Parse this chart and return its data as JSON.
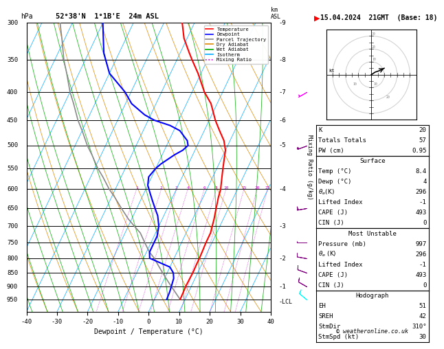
{
  "title_left": "52°38'N  1°1B'E  24m ASL",
  "title_right": "15.04.2024  21GMT  (Base: 18)",
  "xlabel": "Dewpoint / Temperature (°C)",
  "ylabel_left": "hPa",
  "ylabel_right_main": "Mixing Ratio (g/kg)",
  "pressure_levels": [
    300,
    350,
    400,
    450,
    500,
    550,
    600,
    650,
    700,
    750,
    800,
    850,
    900,
    950
  ],
  "pressure_major": [
    300,
    350,
    400,
    450,
    500,
    550,
    600,
    650,
    700,
    750,
    800,
    850,
    900,
    950
  ],
  "xlim": [
    -40,
    40
  ],
  "pmin": 300,
  "pmax": 1000,
  "skew": 45.0,
  "temp_color": "#ff0000",
  "dewp_color": "#0000ff",
  "parcel_color": "#888888",
  "dry_adiabat_color": "#dd8800",
  "wet_adiabat_color": "#00aa00",
  "isotherm_color": "#00aaff",
  "mixing_ratio_color": "#cc00cc",
  "background": "#ffffff",
  "temp_data": [
    [
      300,
      -34
    ],
    [
      320,
      -31
    ],
    [
      340,
      -27
    ],
    [
      350,
      -25
    ],
    [
      370,
      -21
    ],
    [
      400,
      -16
    ],
    [
      420,
      -12
    ],
    [
      450,
      -8
    ],
    [
      470,
      -5
    ],
    [
      490,
      -2
    ],
    [
      500,
      -1
    ],
    [
      510,
      0
    ],
    [
      520,
      0.5
    ],
    [
      530,
      1
    ],
    [
      550,
      2
    ],
    [
      570,
      3
    ],
    [
      590,
      4
    ],
    [
      600,
      4.5
    ],
    [
      620,
      5
    ],
    [
      650,
      6
    ],
    [
      680,
      7
    ],
    [
      700,
      7.5
    ],
    [
      720,
      8
    ],
    [
      750,
      8
    ],
    [
      780,
      8.2
    ],
    [
      800,
      8.3
    ],
    [
      820,
      8.3
    ],
    [
      850,
      8.4
    ],
    [
      870,
      8.3
    ],
    [
      900,
      8.2
    ],
    [
      920,
      8.3
    ],
    [
      950,
      8.4
    ]
  ],
  "dewp_data": [
    [
      300,
      -60
    ],
    [
      340,
      -55
    ],
    [
      370,
      -50
    ],
    [
      400,
      -42
    ],
    [
      420,
      -38
    ],
    [
      440,
      -32
    ],
    [
      450,
      -28
    ],
    [
      460,
      -22
    ],
    [
      470,
      -18
    ],
    [
      480,
      -16
    ],
    [
      490,
      -14
    ],
    [
      500,
      -13
    ],
    [
      510,
      -14
    ],
    [
      520,
      -16
    ],
    [
      540,
      -19
    ],
    [
      550,
      -20
    ],
    [
      570,
      -21
    ],
    [
      590,
      -20
    ],
    [
      610,
      -18
    ],
    [
      630,
      -16
    ],
    [
      650,
      -14
    ],
    [
      670,
      -12
    ],
    [
      700,
      -10
    ],
    [
      730,
      -9
    ],
    [
      750,
      -9
    ],
    [
      780,
      -9
    ],
    [
      800,
      -8
    ],
    [
      830,
      0
    ],
    [
      850,
      2
    ],
    [
      870,
      3
    ],
    [
      900,
      3.5
    ],
    [
      920,
      3.8
    ],
    [
      950,
      4
    ]
  ],
  "parcel_data": [
    [
      950,
      8.4
    ],
    [
      920,
      5.5
    ],
    [
      900,
      3.5
    ],
    [
      880,
      1.5
    ],
    [
      860,
      -0.5
    ],
    [
      850,
      -1.5
    ],
    [
      820,
      -4.5
    ],
    [
      800,
      -6.5
    ],
    [
      780,
      -9
    ],
    [
      760,
      -11
    ],
    [
      750,
      -12
    ],
    [
      720,
      -15
    ],
    [
      700,
      -18
    ],
    [
      680,
      -21
    ],
    [
      650,
      -25
    ],
    [
      620,
      -29
    ],
    [
      600,
      -32
    ],
    [
      570,
      -36
    ],
    [
      550,
      -39
    ],
    [
      520,
      -43
    ],
    [
      500,
      -46
    ],
    [
      470,
      -50
    ],
    [
      450,
      -53
    ],
    [
      420,
      -57
    ],
    [
      400,
      -60
    ],
    [
      370,
      -64
    ],
    [
      350,
      -67
    ],
    [
      320,
      -71
    ],
    [
      300,
      -74
    ]
  ],
  "info_panel": {
    "K": 20,
    "Totals_Totals": 57,
    "PW_cm": 0.95,
    "Surface_Temp": 8.4,
    "Surface_Dewp": 4,
    "Surface_theta_e": 296,
    "Surface_LI": -1,
    "Surface_CAPE": 493,
    "Surface_CIN": 0,
    "MU_Pressure": 997,
    "MU_theta_e": 296,
    "MU_LI": -1,
    "MU_CAPE": 493,
    "MU_CIN": 0,
    "EH": 51,
    "SREH": 42,
    "StmDir": 310,
    "StmSpd": 30
  },
  "legend_entries": [
    {
      "label": "Temperature",
      "color": "#ff0000",
      "ls": "solid"
    },
    {
      "label": "Dewpoint",
      "color": "#0000ff",
      "ls": "solid"
    },
    {
      "label": "Parcel Trajectory",
      "color": "#888888",
      "ls": "solid"
    },
    {
      "label": "Dry Adiabat",
      "color": "#dd8800",
      "ls": "solid"
    },
    {
      "label": "Wet Adiabat",
      "color": "#00aa00",
      "ls": "solid"
    },
    {
      "label": "Isotherm",
      "color": "#00aaff",
      "ls": "solid"
    },
    {
      "label": "Mixing Ratio",
      "color": "#cc00cc",
      "ls": "dotted"
    }
  ],
  "mixing_ratio_vals": [
    1,
    2,
    3,
    4,
    6,
    8,
    10,
    15,
    20,
    25
  ],
  "km_labels": [
    [
      300,
      "9"
    ],
    [
      350,
      "8"
    ],
    [
      400,
      "7"
    ],
    [
      450,
      "6"
    ],
    [
      500,
      "5"
    ],
    [
      600,
      "4"
    ],
    [
      700,
      "3"
    ],
    [
      800,
      "2"
    ],
    [
      900,
      "1"
    ]
  ],
  "wind_barbs": [
    [
      400,
      240,
      7,
      "magenta"
    ],
    [
      500,
      250,
      15,
      "purple"
    ],
    [
      650,
      260,
      20,
      "purple"
    ],
    [
      750,
      270,
      12,
      "purple"
    ],
    [
      800,
      280,
      8,
      "purple"
    ],
    [
      850,
      290,
      8,
      "purple"
    ],
    [
      900,
      300,
      10,
      "purple"
    ],
    [
      950,
      310,
      10,
      "cyan"
    ]
  ]
}
